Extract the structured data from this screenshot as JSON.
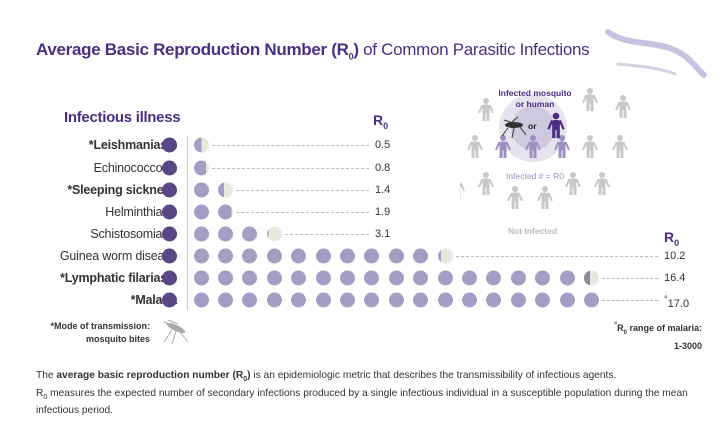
{
  "title": {
    "bold": "Average Basic Reproduction Number (R",
    "bold_sub": "0",
    "bold_close": ")",
    "rest": " of Common Parasitic Infections"
  },
  "headers": {
    "illness": "Infectious illness",
    "r0": "R",
    "r0_sub": "0"
  },
  "diagram": {
    "infected_source": "Infected mosquito or human",
    "infected_source_line1": "Infected mosquito",
    "infected_source_line2": "or human",
    "or": "or",
    "infected_count": "Infected # = R0",
    "not_infected": "Not Infected"
  },
  "colors": {
    "title": "#4b2e83",
    "index_dot": "#5a4585",
    "dot": "#a59dc4",
    "remainder": "#e4ebde",
    "gray_person": "#c8c8c8",
    "infected_person": "#9d8fc4"
  },
  "chart_data": {
    "type": "bar",
    "encoding": "pictograph: one dot per secondary infection",
    "categories": [
      "*Leishmaniasis",
      "Echinococcosis",
      "*Sleeping sickness",
      "Helminthiasis",
      "Schistosomiasis",
      "Guinea worm disease",
      "*Lymphatic filariasis",
      "*Malaria"
    ],
    "bold": [
      true,
      false,
      true,
      false,
      false,
      false,
      true,
      true
    ],
    "values": [
      0.5,
      0.8,
      1.4,
      1.9,
      3.1,
      10.2,
      16.4,
      17.0
    ],
    "value_labels": [
      "0.5",
      "0.8",
      "1.4",
      "1.9",
      "3.1",
      "10.2",
      "16.4",
      "17.0"
    ],
    "value_marks": [
      "",
      "",
      "",
      "",
      "",
      "",
      "",
      "°"
    ],
    "ylabel": "R0"
  },
  "notes": {
    "transmission_line1": "*Mode of transmission:",
    "transmission_line2": "mosquito bites",
    "malaria_mark": "°",
    "malaria_line1": "R",
    "malaria_sub": "0",
    "malaria_line1_rest": " range of malaria:",
    "malaria_line2": "1-3000"
  },
  "description": {
    "pre": "The ",
    "bold": "average basic reproduction number (R",
    "bold_sub": "0",
    "bold_close": ")",
    "line1_rest": " is an epidemiologic metric that describes the transmissibility of infectious agents.",
    "line2_r": "R",
    "line2_sub": "0",
    "line2_rest": " measures the expected number of secondary infections produced by a single infectious individual in a susceptible population during the mean infectious period."
  }
}
